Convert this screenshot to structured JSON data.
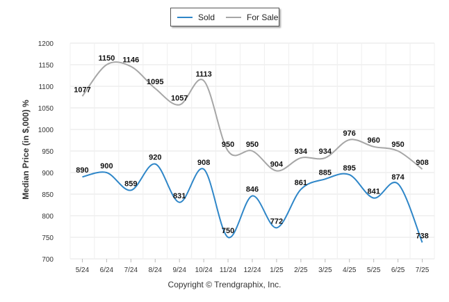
{
  "chart_data": {
    "type": "line",
    "categories": [
      "5/24",
      "6/24",
      "7/24",
      "8/24",
      "9/24",
      "10/24",
      "11/24",
      "12/24",
      "1/25",
      "2/25",
      "3/25",
      "4/25",
      "5/25",
      "6/25",
      "7/25"
    ],
    "series": [
      {
        "name": "Sold",
        "color": "#2e86c8",
        "values": [
          890,
          900,
          859,
          920,
          831,
          908,
          750,
          846,
          772,
          861,
          885,
          895,
          841,
          874,
          738
        ]
      },
      {
        "name": "For Sale",
        "color": "#a6a6a6",
        "values": [
          1077,
          1150,
          1146,
          1095,
          1057,
          1113,
          950,
          950,
          904,
          934,
          934,
          976,
          960,
          950,
          908
        ]
      }
    ],
    "ylabel": "Median Price (in $,000) %",
    "xlabel": "",
    "ylim": [
      700,
      1200
    ],
    "yticks": [
      700,
      750,
      800,
      850,
      900,
      950,
      1000,
      1050,
      1100,
      1150,
      1200
    ],
    "grid": true,
    "legend_position": "top-center",
    "credit": "Copyright © Trendgraphix, Inc."
  }
}
